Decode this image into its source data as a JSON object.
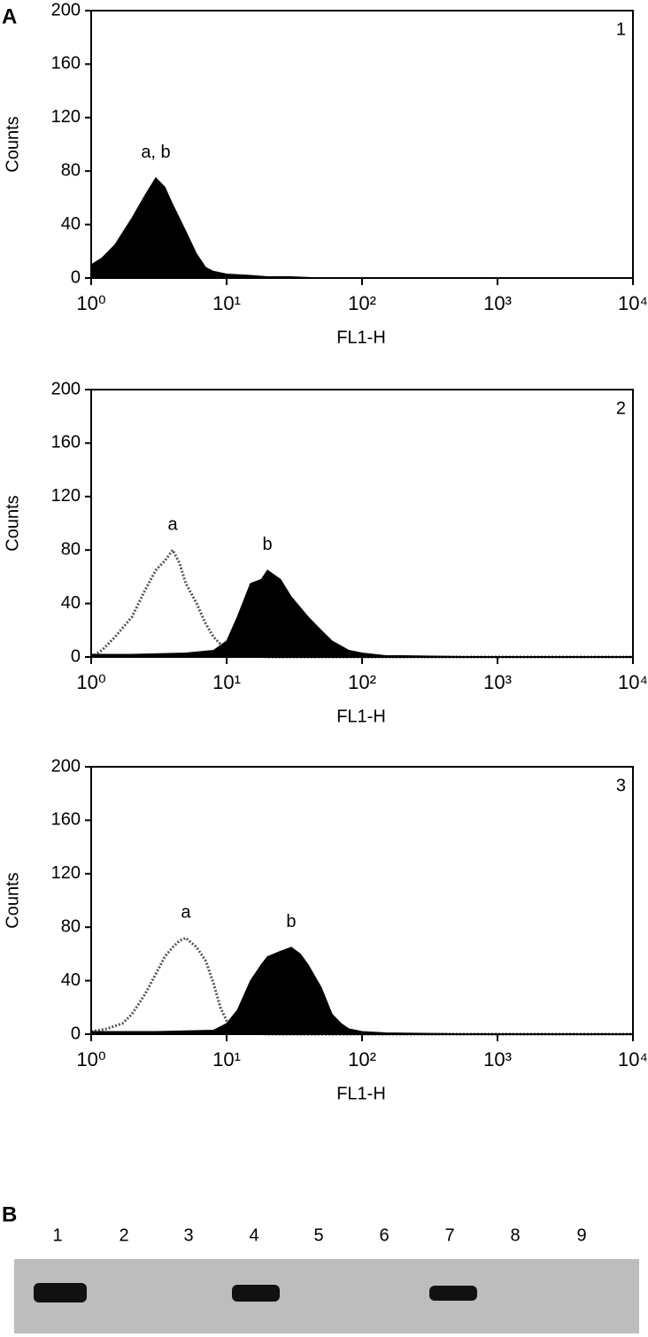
{
  "panel_a_label": "A",
  "chart_data": [
    {
      "type": "area",
      "panel": "1",
      "ylabel": "Counts",
      "xlabel": "FL1-H",
      "log_x": true,
      "xlim": [
        1,
        10000
      ],
      "xticks": [
        {
          "value": 1,
          "label": "10⁰"
        },
        {
          "value": 10,
          "label": "10¹"
        },
        {
          "value": 100,
          "label": "10²"
        },
        {
          "value": 1000,
          "label": "10³"
        },
        {
          "value": 10000,
          "label": "10⁴"
        }
      ],
      "ylim": [
        0,
        200
      ],
      "yticks": [
        0,
        40,
        80,
        120,
        160,
        200
      ],
      "series": [
        {
          "name": "a, b",
          "color": "#000000",
          "style": "filled",
          "x": [
            1,
            1.2,
            1.5,
            2,
            2.5,
            3,
            3.5,
            4,
            5,
            6,
            7,
            8,
            10,
            15,
            20,
            30,
            50,
            100,
            1000,
            10000
          ],
          "values": [
            10,
            15,
            25,
            45,
            62,
            75,
            68,
            55,
            35,
            18,
            8,
            5,
            3,
            2,
            1,
            1,
            0,
            0,
            0,
            0
          ]
        }
      ]
    },
    {
      "type": "area",
      "panel": "2",
      "ylabel": "Counts",
      "xlabel": "FL1-H",
      "log_x": true,
      "xlim": [
        1,
        10000
      ],
      "xticks": [
        {
          "value": 1,
          "label": "10⁰"
        },
        {
          "value": 10,
          "label": "10¹"
        },
        {
          "value": 100,
          "label": "10²"
        },
        {
          "value": 1000,
          "label": "10³"
        },
        {
          "value": 10000,
          "label": "10⁴"
        }
      ],
      "ylim": [
        0,
        200
      ],
      "yticks": [
        0,
        40,
        80,
        120,
        160,
        200
      ],
      "series": [
        {
          "name": "a",
          "color": "#555555",
          "style": "dotted",
          "x": [
            1,
            1.2,
            1.5,
            2,
            2.5,
            3,
            3.5,
            4,
            4.5,
            5,
            6,
            7,
            8,
            10,
            12,
            15,
            20,
            30,
            100,
            10000
          ],
          "values": [
            0,
            5,
            15,
            30,
            50,
            65,
            72,
            80,
            70,
            55,
            40,
            25,
            15,
            5,
            2,
            1,
            0,
            0,
            0,
            0
          ]
        },
        {
          "name": "b",
          "color": "#000000",
          "style": "filled",
          "x": [
            1,
            2,
            5,
            8,
            10,
            12,
            15,
            18,
            20,
            25,
            30,
            40,
            50,
            60,
            80,
            100,
            150,
            200,
            1000,
            10000
          ],
          "values": [
            2,
            2,
            3,
            5,
            12,
            30,
            55,
            58,
            65,
            58,
            45,
            30,
            20,
            12,
            5,
            3,
            1,
            1,
            0,
            0
          ]
        }
      ]
    },
    {
      "type": "area",
      "panel": "3",
      "ylabel": "Counts",
      "xlabel": "FL1-H",
      "log_x": true,
      "xlim": [
        1,
        10000
      ],
      "xticks": [
        {
          "value": 1,
          "label": "10⁰"
        },
        {
          "value": 10,
          "label": "10¹"
        },
        {
          "value": 100,
          "label": "10²"
        },
        {
          "value": 1000,
          "label": "10³"
        },
        {
          "value": 10000,
          "label": "10⁴"
        }
      ],
      "ylim": [
        0,
        200
      ],
      "yticks": [
        0,
        40,
        80,
        120,
        160,
        200
      ],
      "series": [
        {
          "name": "a",
          "color": "#555555",
          "style": "dotted",
          "x": [
            1,
            1.3,
            1.7,
            2,
            2.5,
            3,
            3.5,
            4,
            4.5,
            5,
            6,
            7,
            8,
            9,
            10,
            12,
            15,
            20,
            100,
            10000
          ],
          "values": [
            2,
            4,
            8,
            15,
            30,
            45,
            58,
            65,
            70,
            72,
            65,
            55,
            38,
            20,
            10,
            4,
            1,
            0,
            0,
            0
          ]
        },
        {
          "name": "b",
          "color": "#000000",
          "style": "filled",
          "x": [
            1,
            3,
            8,
            10,
            12,
            15,
            18,
            20,
            25,
            30,
            35,
            40,
            50,
            60,
            70,
            80,
            100,
            150,
            1000,
            10000
          ],
          "values": [
            2,
            2,
            3,
            8,
            18,
            40,
            52,
            58,
            62,
            65,
            60,
            52,
            35,
            15,
            8,
            4,
            2,
            1,
            0,
            0
          ]
        }
      ]
    }
  ],
  "panel_b": {
    "label": "B",
    "lanes": [
      "1",
      "2",
      "3",
      "4",
      "5",
      "6",
      "7",
      "8",
      "9"
    ]
  }
}
